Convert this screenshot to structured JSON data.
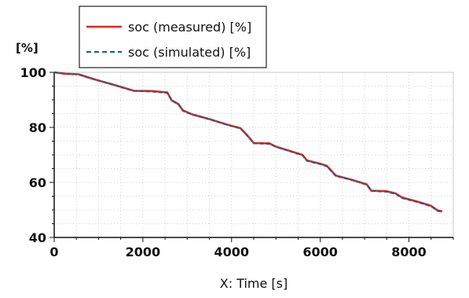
{
  "chart_data": {
    "type": "line",
    "xlabel": "X: Time [s]",
    "ylabel": "[%]",
    "xlim": [
      0,
      9000
    ],
    "ylim": [
      40,
      100
    ],
    "xticks": [
      0,
      2000,
      4000,
      6000,
      8000
    ],
    "xtick_labels": [
      "0",
      "2000",
      "4000",
      "6000",
      "8000"
    ],
    "yticks": [
      40,
      60,
      80,
      100
    ],
    "ytick_labels": [
      "40",
      "60",
      "80",
      "100"
    ],
    "grid": true,
    "legend_position": "top-left-outside",
    "series": [
      {
        "name": "soc (measured) [%]",
        "color": "#e8231d",
        "style": "solid",
        "x": [
          0,
          250,
          550,
          900,
          1300,
          1800,
          2200,
          2550,
          2650,
          2800,
          2900,
          3100,
          3500,
          3900,
          4200,
          4350,
          4500,
          4850,
          5000,
          5300,
          5600,
          5700,
          6000,
          6150,
          6350,
          6700,
          7050,
          7150,
          7500,
          7700,
          7850,
          8200,
          8500,
          8650,
          8750
        ],
        "y": [
          100,
          99.5,
          99.3,
          97.5,
          95.7,
          93.3,
          93.2,
          92.7,
          89.8,
          88.5,
          86.2,
          84.8,
          83.0,
          81.0,
          79.7,
          77.2,
          74.3,
          74.2,
          73.0,
          71.5,
          70.0,
          68.0,
          66.8,
          66.0,
          62.5,
          61.0,
          59.3,
          57.0,
          56.8,
          56.0,
          54.5,
          53.0,
          51.5,
          49.8,
          49.5
        ]
      },
      {
        "name": "soc (simulated) [%]",
        "color": "#1f5f8b",
        "style": "dashed",
        "x": [
          0,
          250,
          550,
          900,
          1300,
          1800,
          2200,
          2550,
          2650,
          2800,
          2900,
          3100,
          3500,
          3900,
          4200,
          4350,
          4500,
          4850,
          5000,
          5300,
          5600,
          5700,
          6000,
          6150,
          6350,
          6700,
          7050,
          7150,
          7500,
          7700,
          7850,
          8200,
          8500,
          8650,
          8750
        ],
        "y": [
          100,
          99.5,
          99.2,
          97.4,
          95.6,
          93.2,
          93.0,
          92.5,
          89.7,
          88.4,
          86.0,
          84.7,
          82.9,
          80.9,
          79.6,
          77.0,
          74.2,
          74.0,
          72.9,
          71.4,
          69.8,
          67.8,
          66.6,
          65.8,
          62.3,
          60.9,
          59.1,
          56.9,
          56.6,
          55.8,
          54.3,
          52.8,
          51.3,
          49.6,
          49.3
        ]
      }
    ]
  }
}
